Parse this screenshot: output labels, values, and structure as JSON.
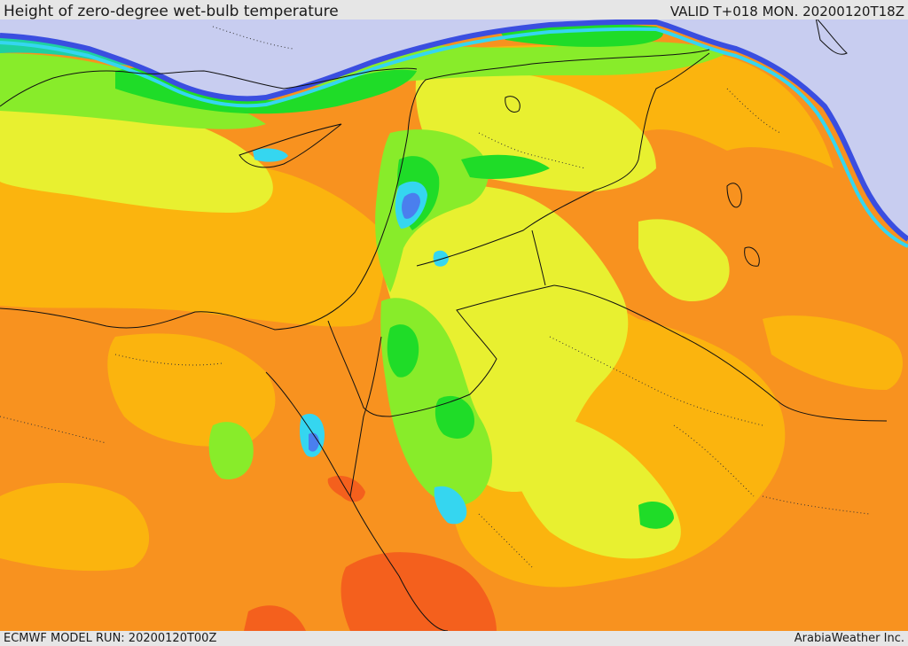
{
  "header": {
    "title": "Height of zero-degree wet-bulb temperature",
    "valid": "VALID T+018 MON. 20200120T18Z"
  },
  "footer": {
    "model_run": "ECMWF MODEL RUN: 20200120T00Z",
    "credit": "ArabiaWeather Inc."
  },
  "palette": {
    "sea_ice_lavender": "#c8cdf0",
    "deep_blue": "#3a4ee0",
    "blue": "#4a7fee",
    "cyan": "#35d6f0",
    "teal_green": "#1fd0a0",
    "green": "#1fdc28",
    "light_green": "#88ec2a",
    "yellow_green": "#d6f22c",
    "yellow": "#e8f030",
    "amber": "#fbb40e",
    "orange": "#f8921f",
    "red_orange": "#f4601d",
    "land_outline": "#111111",
    "border_outline": "#111111"
  }
}
